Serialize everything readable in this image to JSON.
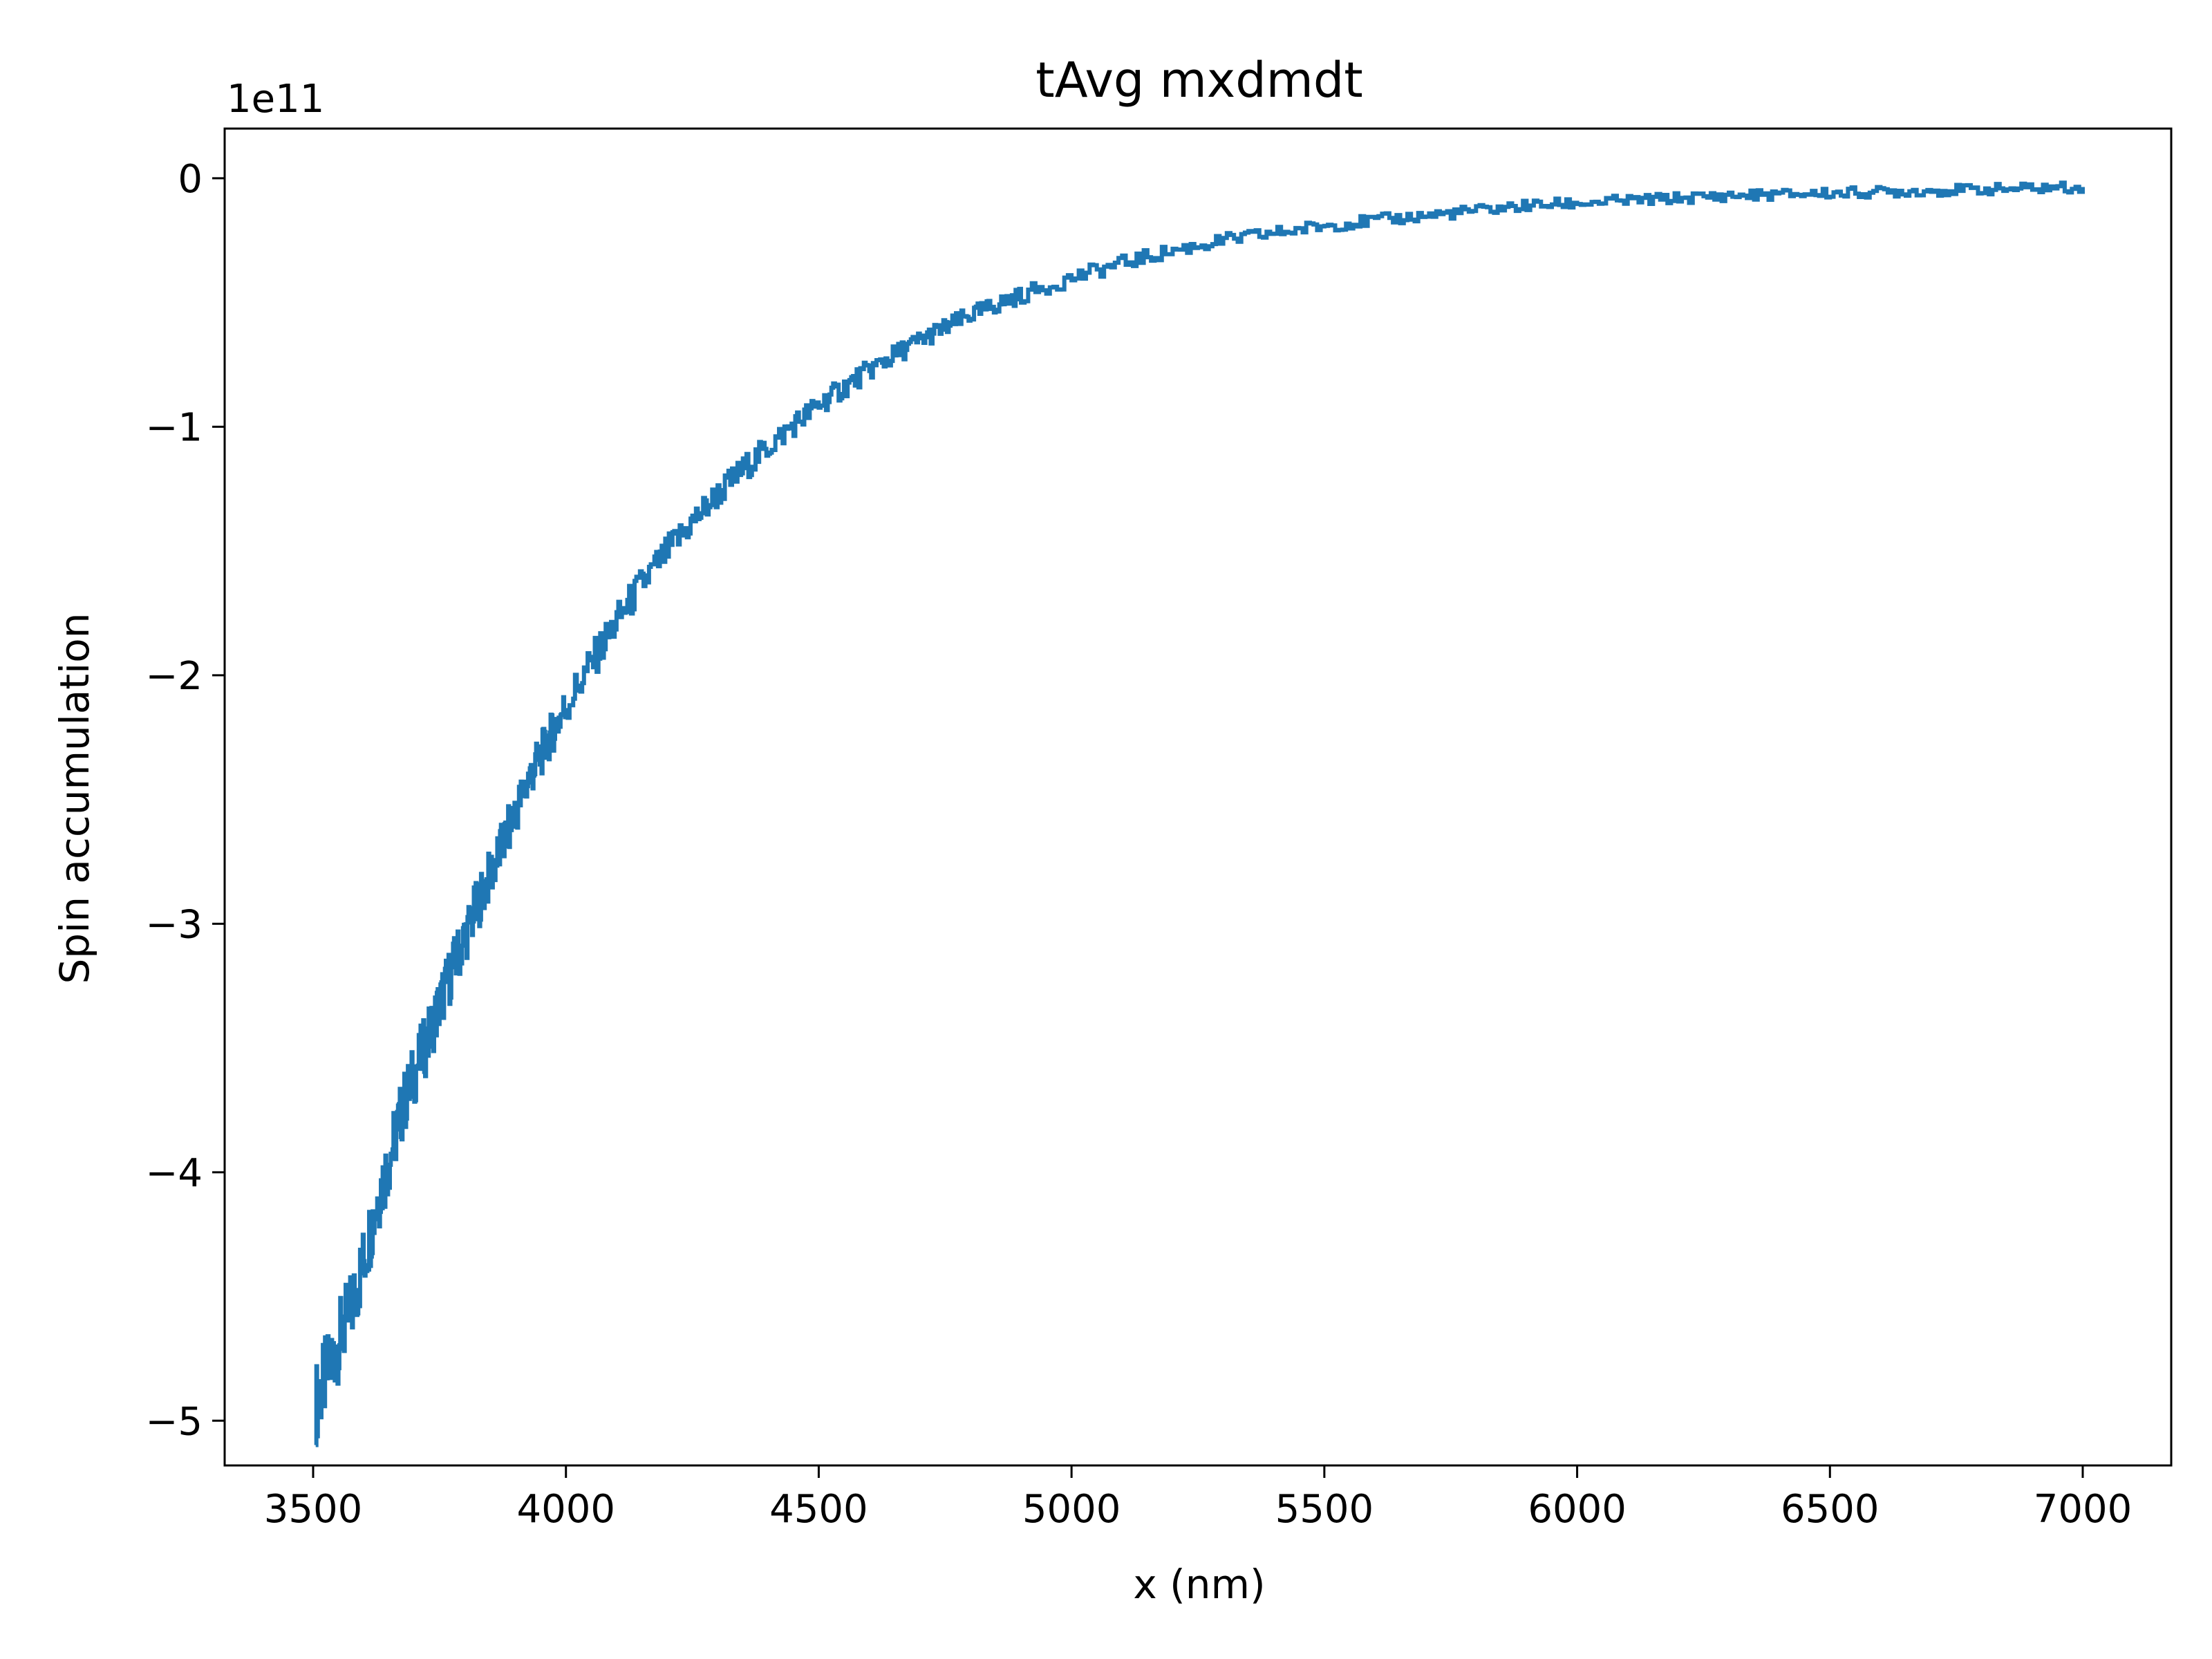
{
  "chart_data": {
    "type": "line",
    "title": "tAvg mxdmdt",
    "xlabel": "x (nm)",
    "ylabel": "Spin accumulation",
    "y_offset_label": "1e11",
    "y_scale": 100000000000.0,
    "xlim": [
      3325,
      7175
    ],
    "ylim": [
      -5.18,
      0.2
    ],
    "x_ticks": [
      3500,
      4000,
      4500,
      5000,
      5500,
      6000,
      6500,
      7000
    ],
    "x_tick_labels": [
      "3500",
      "4000",
      "4500",
      "5000",
      "5500",
      "6000",
      "6500",
      "7000"
    ],
    "y_ticks": [
      0,
      -1,
      -2,
      -3,
      -4,
      -5
    ],
    "y_tick_labels": [
      "0",
      "−1",
      "−2",
      "−3",
      "−4",
      "−5"
    ],
    "grid": false,
    "series": [
      {
        "color": "#1f77b4",
        "x": [
          3505,
          3525,
          3550,
          3575,
          3600,
          3625,
          3650,
          3675,
          3700,
          3725,
          3750,
          3775,
          3800,
          3825,
          3850,
          3875,
          3900,
          3925,
          3950,
          3975,
          4000,
          4050,
          4100,
          4150,
          4200,
          4250,
          4300,
          4350,
          4400,
          4450,
          4500,
          4550,
          4600,
          4650,
          4700,
          4750,
          4800,
          4850,
          4900,
          5000,
          5100,
          5200,
          5300,
          5400,
          5500,
          5600,
          5700,
          5800,
          5900,
          6000,
          6100,
          6200,
          6300,
          6400,
          6500,
          6600,
          6700,
          6800,
          6900,
          7000
        ],
        "y": [
          -4.93,
          -4.82,
          -4.68,
          -4.55,
          -4.35,
          -4.12,
          -3.95,
          -3.75,
          -3.6,
          -3.47,
          -3.32,
          -3.18,
          -3.05,
          -2.92,
          -2.8,
          -2.68,
          -2.55,
          -2.42,
          -2.32,
          -2.22,
          -2.12,
          -1.95,
          -1.78,
          -1.63,
          -1.5,
          -1.38,
          -1.27,
          -1.17,
          -1.08,
          -0.99,
          -0.91,
          -0.84,
          -0.77,
          -0.71,
          -0.65,
          -0.6,
          -0.55,
          -0.51,
          -0.47,
          -0.4,
          -0.34,
          -0.29,
          -0.25,
          -0.22,
          -0.19,
          -0.17,
          -0.15,
          -0.13,
          -0.11,
          -0.1,
          -0.09,
          -0.08,
          -0.07,
          -0.065,
          -0.06,
          -0.055,
          -0.05,
          -0.045,
          -0.04,
          -0.035
        ]
      }
    ]
  }
}
